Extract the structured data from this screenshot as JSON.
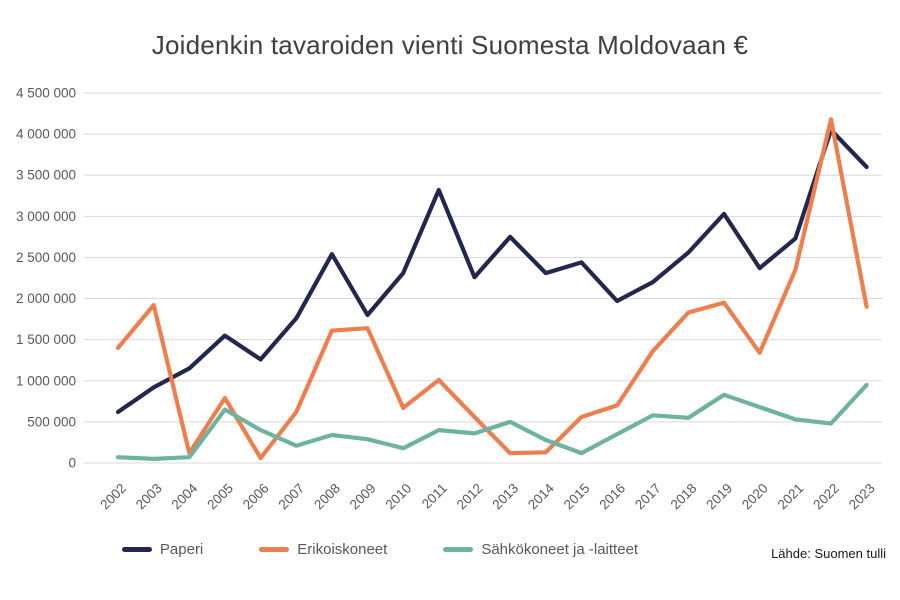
{
  "title": "Joidenkin tavaroiden vienti Suomesta Moldovaan €",
  "source": "Lähde: Suomen tulli",
  "colors": {
    "paperi": "#232750",
    "erikoiskoneet": "#ED7F4E",
    "sahkokoneet": "#6DB3A0",
    "grid": "#D9D9D9",
    "axis_text": "#595959",
    "title_text": "#404040"
  },
  "chart_data": {
    "type": "line",
    "title": "Joidenkin tavaroiden vienti Suomesta Moldovaan €",
    "xlabel": "",
    "ylabel": "",
    "ylim": [
      0,
      4500000
    ],
    "ytick_step": 500000,
    "grid": true,
    "legend_position": "bottom",
    "categories": [
      "2002",
      "2003",
      "2004",
      "2005",
      "2006",
      "2007",
      "2008",
      "2009",
      "2010",
      "2011",
      "2012",
      "2013",
      "2014",
      "2015",
      "2016",
      "2017",
      "2018",
      "2019",
      "2020",
      "2021",
      "2022",
      "2023"
    ],
    "series": [
      {
        "name": "Paperi",
        "color": "#232750",
        "values": [
          620000,
          920000,
          1150000,
          1550000,
          1260000,
          1760000,
          2540000,
          1800000,
          2310000,
          3320000,
          2260000,
          2750000,
          2310000,
          2440000,
          1970000,
          2200000,
          2560000,
          3030000,
          2370000,
          2730000,
          4050000,
          3600000
        ]
      },
      {
        "name": "Erikoiskoneet",
        "color": "#ED7F4E",
        "values": [
          1400000,
          1920000,
          120000,
          790000,
          60000,
          620000,
          1610000,
          1640000,
          670000,
          1010000,
          560000,
          120000,
          130000,
          560000,
          700000,
          1360000,
          1830000,
          1950000,
          1340000,
          2350000,
          4180000,
          1900000
        ]
      },
      {
        "name": "Sähkökoneet ja -laitteet",
        "color": "#6DB3A0",
        "values": [
          70000,
          50000,
          70000,
          650000,
          400000,
          210000,
          340000,
          290000,
          180000,
          400000,
          360000,
          500000,
          280000,
          120000,
          350000,
          580000,
          550000,
          830000,
          680000,
          530000,
          480000,
          950000
        ]
      }
    ]
  }
}
